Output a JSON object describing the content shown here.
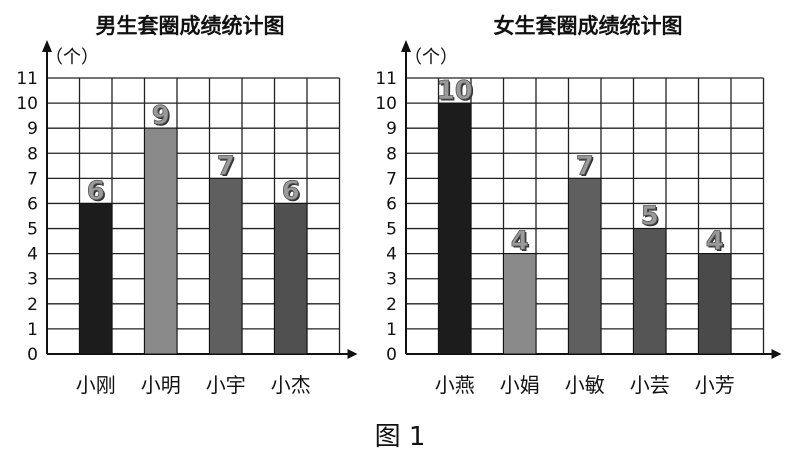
{
  "caption": "图 1",
  "chart_data": [
    {
      "type": "bar",
      "title": "男生套圈成绩统计图",
      "ylabel": "（个）",
      "xlabel": "",
      "ylim": [
        0,
        11
      ],
      "yticks": [
        0,
        1,
        2,
        3,
        4,
        5,
        6,
        7,
        8,
        9,
        10,
        11
      ],
      "grid": true,
      "categories": [
        "小刚",
        "小明",
        "小宇",
        "小杰"
      ],
      "values": [
        6,
        9,
        7,
        6
      ],
      "data_labels": [
        "6",
        "9",
        "7",
        "6"
      ],
      "colors": [
        "#1c1c1c",
        "#8a8a8a",
        "#5f5f5f",
        "#505050"
      ]
    },
    {
      "type": "bar",
      "title": "女生套圈成绩统计图",
      "ylabel": "（个）",
      "xlabel": "",
      "ylim": [
        0,
        11
      ],
      "yticks": [
        0,
        1,
        2,
        3,
        4,
        5,
        6,
        7,
        8,
        9,
        10,
        11
      ],
      "grid": true,
      "categories": [
        "小燕",
        "小娟",
        "小敏",
        "小芸",
        "小芳"
      ],
      "values": [
        10,
        4,
        7,
        5,
        4
      ],
      "data_labels": [
        "10",
        "4",
        "7",
        "5",
        "4"
      ],
      "colors": [
        "#1c1c1c",
        "#8a8a8a",
        "#5f5f5f",
        "#555555",
        "#4a4a4a"
      ]
    }
  ]
}
